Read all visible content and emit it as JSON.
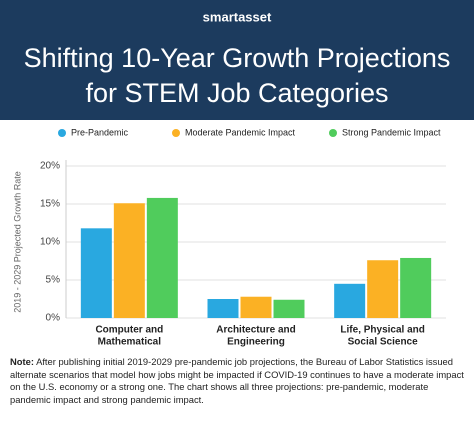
{
  "brand": "smartasset",
  "chart_data": {
    "type": "bar",
    "title": [
      "Shifting 10-Year Growth Projections",
      "for STEM Job Categories"
    ],
    "y_label": "2019 - 2029 Projected Growth Rate",
    "categories": [
      [
        "Computer and",
        "Mathematical"
      ],
      [
        "Architecture and",
        "Engineering"
      ],
      [
        "Life, Physical and",
        "Social Science"
      ]
    ],
    "series": [
      {
        "name": "Pre-Pandemic",
        "color": "#29a8e0",
        "values": [
          11.8,
          2.5,
          4.5
        ]
      },
      {
        "name": "Moderate Pandemic Impact",
        "color": "#fbb124",
        "values": [
          15.1,
          2.8,
          7.6
        ]
      },
      {
        "name": "Strong Pandemic Impact",
        "color": "#50cc5c",
        "values": [
          15.8,
          2.4,
          7.9
        ]
      }
    ],
    "ylim": [
      0,
      20
    ],
    "yticks": [
      {
        "value": 0,
        "label": "0%"
      },
      {
        "value": 5,
        "label": "5%"
      },
      {
        "value": 10,
        "label": "10%"
      },
      {
        "value": 15,
        "label": "15%"
      },
      {
        "value": 20,
        "label": "20%"
      }
    ],
    "grid": true,
    "legend": "top"
  },
  "note": {
    "label": "Note:",
    "text": "After publishing initial 2019-2029 pre-pandemic job projections, the Bureau of Labor Statistics issued alternate scenarios that model how jobs might be impacted if COVID-19 continues to have a moderate impact on the U.S. economy or a strong one. The chart shows all three projections: pre-pandemic, moderate pandemic impact and strong pandemic impact."
  }
}
